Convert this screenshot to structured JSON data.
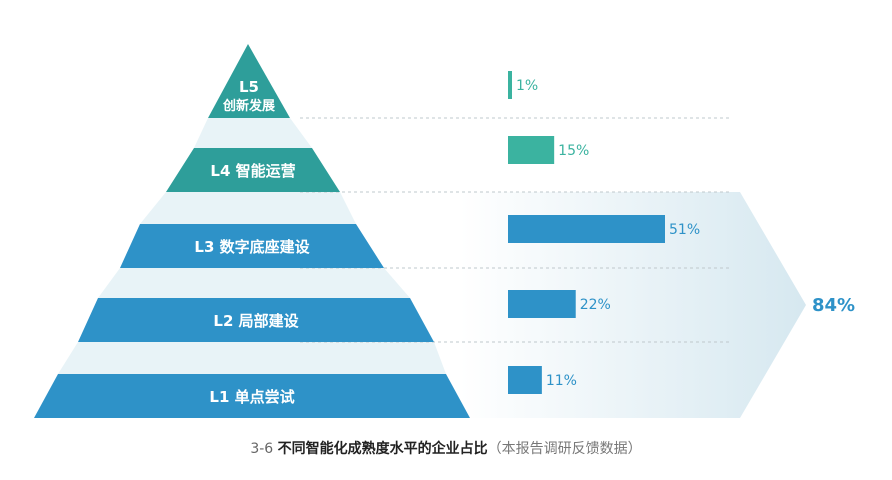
{
  "caption": {
    "number": "3-6",
    "title": "不同智能化成熟度水平的企业占比",
    "source": "（本报告调研反馈数据）"
  },
  "colors": {
    "teal": "#3BB3A0",
    "teal_dark": "#2E9E9A",
    "blue": "#2E92C8",
    "blue_light": "#3A9FD0",
    "dashed": "#BFC8CC",
    "arrow_gradient_start": "#FFFFFF",
    "arrow_gradient_end": "#D6E8F0",
    "total_text": "#2E92C8"
  },
  "chart_data": {
    "type": "bar",
    "orientation": "horizontal",
    "categories": [
      "L5 创新发展",
      "L4 智能运营",
      "L3 数字底座建设",
      "L2 局部建设",
      "L1 单点尝试"
    ],
    "levels": [
      {
        "code": "L5",
        "name": "创新发展",
        "value": 1,
        "value_label": "1%",
        "color": "#3BB3A0"
      },
      {
        "code": "L4",
        "name": "智能运营",
        "value": 15,
        "value_label": "15%",
        "color": "#3BB3A0"
      },
      {
        "code": "L3",
        "name": "数字底座建设",
        "value": 51,
        "value_label": "51%",
        "color": "#2E92C8"
      },
      {
        "code": "L2",
        "name": "局部建设",
        "value": 22,
        "value_label": "22%",
        "color": "#2E92C8"
      },
      {
        "code": "L1",
        "name": "单点尝试",
        "value": 11,
        "value_label": "11%",
        "color": "#2E92C8"
      }
    ],
    "total": {
      "value": 84,
      "label": "84%",
      "applies_to": [
        "L3",
        "L2",
        "L1"
      ]
    },
    "unit": "%"
  }
}
